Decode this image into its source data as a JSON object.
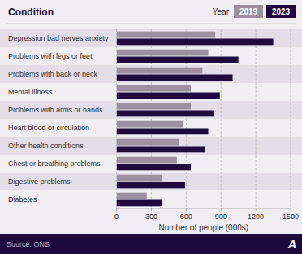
{
  "chart_data": {
    "type": "bar",
    "orientation": "horizontal",
    "title": "Condition",
    "legend_title": "Year",
    "xlabel": "Number of people (000s)",
    "source": "Source: ONS",
    "annotations": [
      "A"
    ],
    "categories": [
      "Depression bad nerves anxiety",
      "Problems with legs or feet",
      "Problems with back or neck",
      "Mental illness",
      "Problems with arms or hands",
      "Heart blood or circulation",
      "Other health conditions",
      "Chest or breathing problems",
      "Digestive problems",
      "Diabetes"
    ],
    "series": [
      {
        "name": "2019",
        "color": "#9b8fa0",
        "values": [
          850,
          790,
          740,
          640,
          640,
          570,
          540,
          520,
          390,
          260
        ]
      },
      {
        "name": "2023",
        "color": "#1e0a3c",
        "values": [
          1350,
          1050,
          1000,
          890,
          840,
          790,
          760,
          640,
          590,
          390
        ]
      }
    ],
    "xlim": [
      0,
      1500
    ],
    "xticks": [
      0,
      300,
      600,
      900,
      1200,
      1500
    ],
    "grid": true,
    "legend": "upper right"
  }
}
